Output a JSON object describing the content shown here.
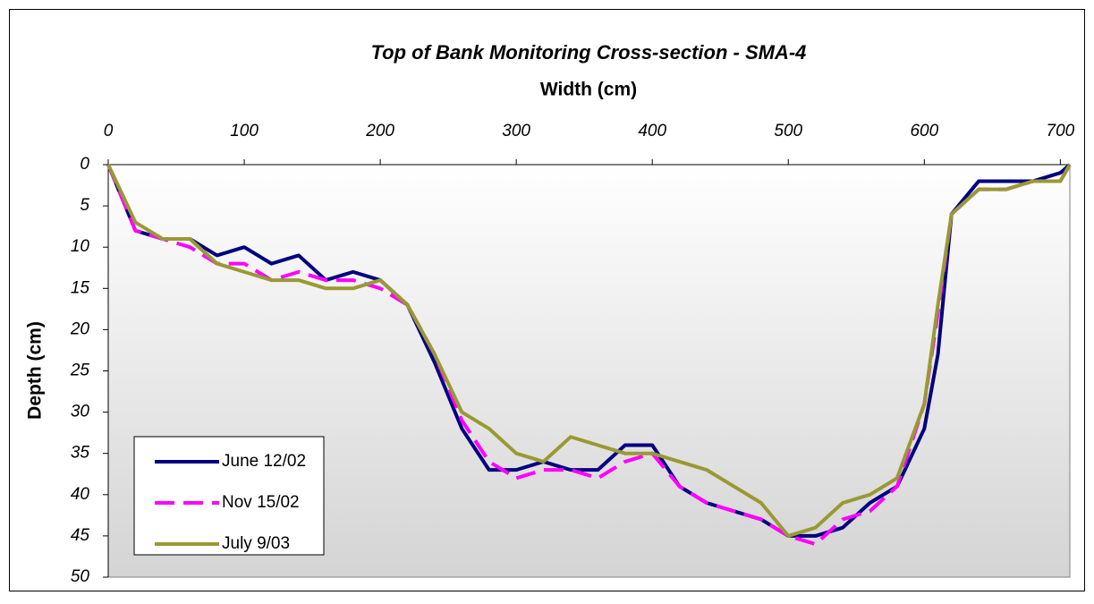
{
  "chart_data": {
    "type": "line",
    "title": "Top of Bank Monitoring Cross-section - SMA-4",
    "x_label": "Width (cm)",
    "y_label": "Depth (cm)",
    "x": [
      0,
      20,
      40,
      60,
      80,
      100,
      120,
      140,
      160,
      180,
      200,
      220,
      240,
      260,
      280,
      300,
      320,
      340,
      360,
      380,
      400,
      420,
      440,
      460,
      480,
      500,
      520,
      540,
      560,
      580,
      600,
      610,
      620,
      640,
      660,
      680,
      700,
      707
    ],
    "series": [
      {
        "name": "June 12/02",
        "color": "#000080",
        "dash": false,
        "values": [
          0,
          8,
          9,
          9,
          11,
          10,
          12,
          11,
          14,
          13,
          14,
          17,
          24,
          32,
          37,
          37,
          36,
          37,
          37,
          34,
          34,
          39,
          41,
          42,
          43,
          45,
          45,
          44,
          41,
          39,
          32,
          23,
          6,
          2,
          2,
          2,
          1,
          0
        ]
      },
      {
        "name": "Nov 15/02",
        "color": "#ff00ff",
        "dash": true,
        "values": [
          0,
          8,
          9,
          10,
          12,
          12,
          14,
          13,
          14,
          14,
          15,
          17,
          23,
          31,
          36,
          38,
          37,
          37,
          38,
          36,
          35,
          39,
          41,
          42,
          43,
          45,
          46,
          43,
          42,
          39,
          29,
          18,
          6,
          3,
          3,
          2,
          2,
          0
        ]
      },
      {
        "name": "July 9/03",
        "color": "#999933",
        "dash": false,
        "values": [
          0,
          7,
          9,
          9,
          12,
          13,
          14,
          14,
          15,
          15,
          14,
          17,
          23,
          30,
          32,
          35,
          36,
          33,
          34,
          35,
          35,
          36,
          37,
          39,
          41,
          45,
          44,
          41,
          40,
          38,
          29,
          17,
          6,
          3,
          3,
          2,
          2,
          0
        ]
      }
    ],
    "xlim": [
      0,
      707
    ],
    "xticks": [
      0,
      100,
      200,
      300,
      400,
      500,
      600,
      700
    ],
    "ylim": [
      0,
      50
    ],
    "yticks": [
      0,
      5,
      10,
      15,
      20,
      25,
      30,
      35,
      40,
      45,
      50
    ],
    "y_reversed": true,
    "x_axis_position": "top",
    "legend": "lower left"
  }
}
